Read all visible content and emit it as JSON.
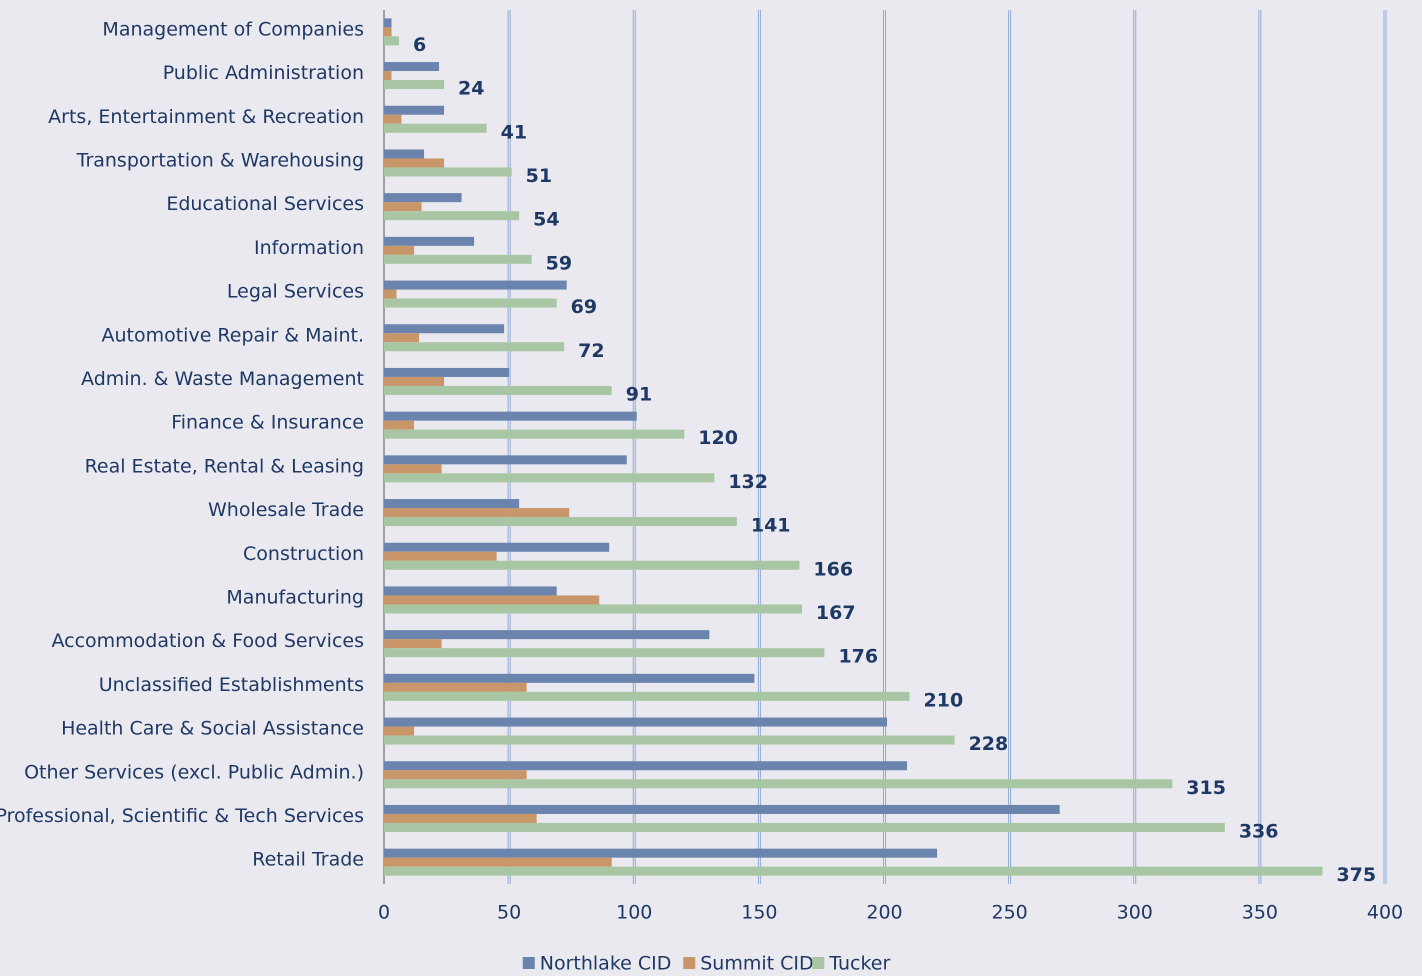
{
  "chart_data": {
    "type": "bar",
    "orientation": "horizontal",
    "categories": [
      "Management of Companies",
      "Public Administration",
      "Arts, Entertainment & Recreation",
      "Transportation & Warehousing",
      "Educational Services",
      "Information",
      "Legal Services",
      "Automotive Repair & Maint.",
      "Admin. & Waste Management",
      "Finance & Insurance",
      "Real Estate, Rental & Leasing",
      "Wholesale Trade",
      "Construction",
      "Manufacturing",
      "Accommodation & Food Services",
      "Unclassified Establishments",
      "Health Care & Social Assistance",
      "Other Services (excl. Public Admin.)",
      "Professional, Scientific & Tech Services",
      "Retail Trade"
    ],
    "series": [
      {
        "name": "Northlake CID",
        "color": "#6a84ad",
        "values": [
          3,
          22,
          24,
          16,
          31,
          36,
          73,
          48,
          50,
          101,
          97,
          54,
          90,
          69,
          130,
          148,
          201,
          209,
          270,
          221
        ]
      },
      {
        "name": "Summit CID",
        "color": "#c9966a",
        "values": [
          3,
          3,
          7,
          24,
          15,
          12,
          5,
          14,
          24,
          12,
          23,
          74,
          45,
          86,
          23,
          57,
          12,
          57,
          61,
          91
        ]
      },
      {
        "name": "Tucker",
        "color": "#a9c6a4",
        "values": [
          6,
          24,
          41,
          51,
          54,
          59,
          69,
          72,
          91,
          120,
          132,
          141,
          166,
          167,
          176,
          210,
          228,
          315,
          336,
          375
        ]
      }
    ],
    "data_labels_series": 2,
    "xlim": [
      0,
      400
    ],
    "xticks": [
      0,
      50,
      100,
      150,
      200,
      250,
      300,
      350,
      400
    ],
    "grid": true,
    "legend": "bottom"
  }
}
